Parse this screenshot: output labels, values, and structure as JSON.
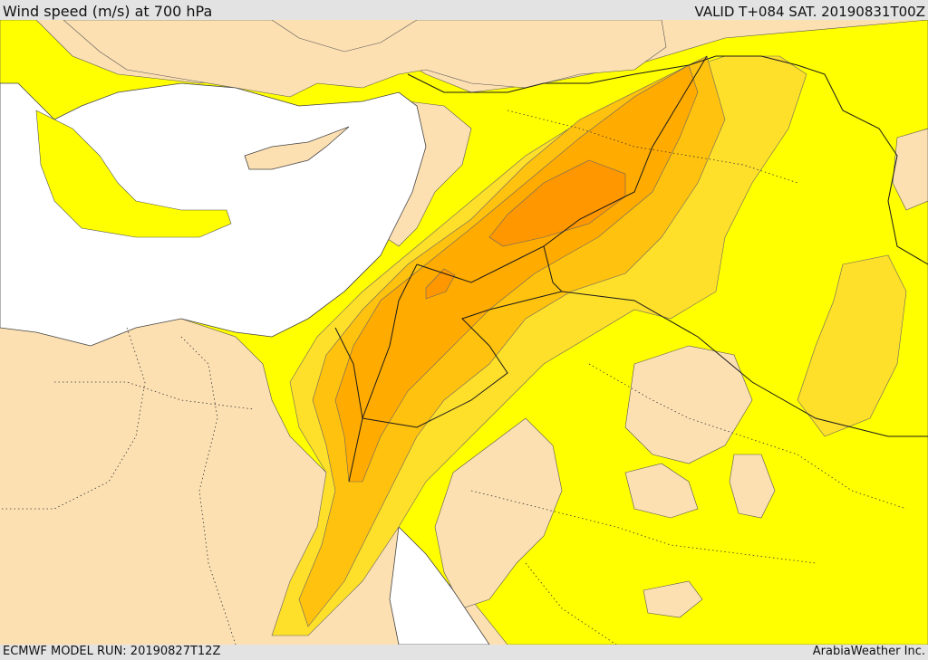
{
  "header": {
    "title": "Wind speed (m/s) at 700 hPa",
    "valid": "VALID T+084 SAT. 20190831T00Z"
  },
  "footer": {
    "model_run": "ECMWF MODEL RUN: 20190827T12Z",
    "credit": "ArabiaWeather Inc."
  },
  "map": {
    "region": "Eastern Mediterranean, Levant and northern Arabia",
    "colors": {
      "sea": "#ffffff",
      "land_low_wind": "#fde0b2",
      "band_1": "#ffff00",
      "band_2": "#fedf2a",
      "band_3": "#ffc20e",
      "band_4": "#ffab00",
      "band_5": "#ff9700",
      "border": "#1a1a1a"
    }
  }
}
